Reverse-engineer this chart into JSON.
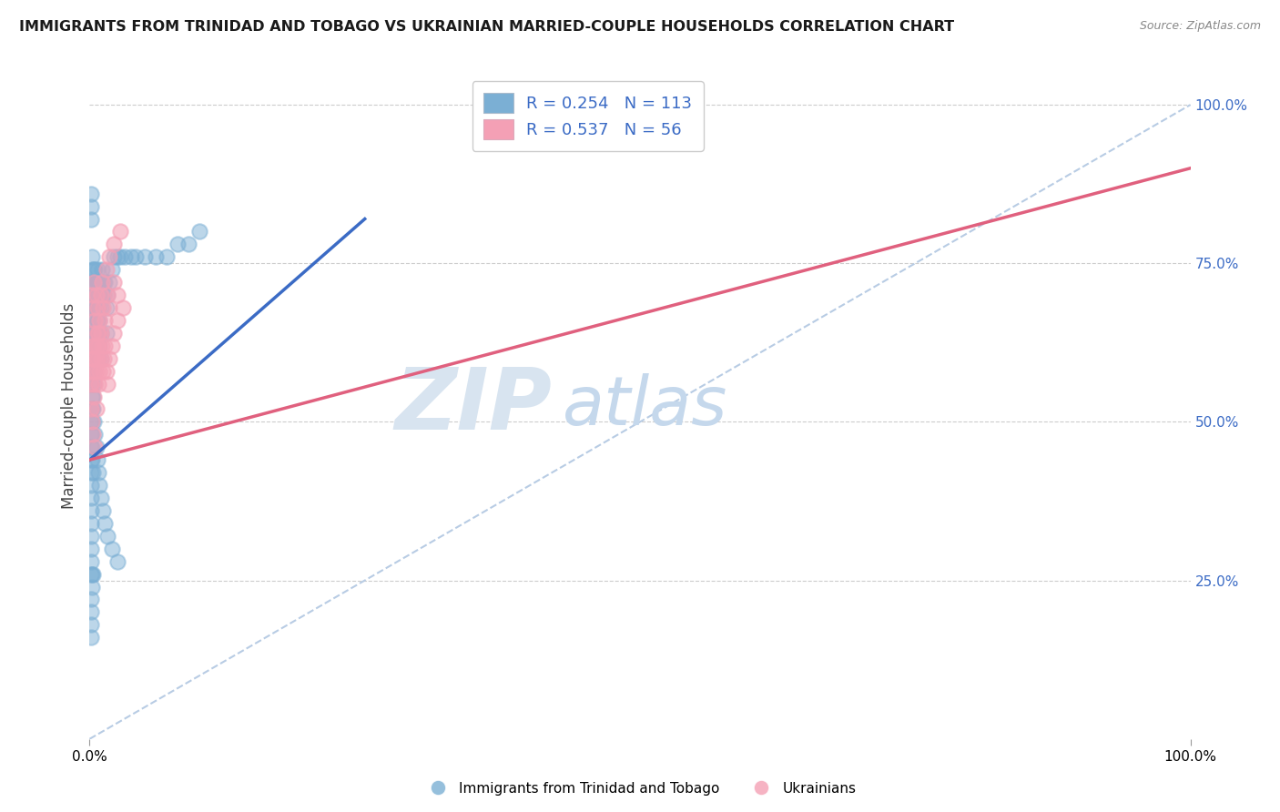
{
  "title": "IMMIGRANTS FROM TRINIDAD AND TOBAGO VS UKRAINIAN MARRIED-COUPLE HOUSEHOLDS CORRELATION CHART",
  "source": "Source: ZipAtlas.com",
  "ylabel": "Married-couple Households",
  "y_ticks_right": [
    "25.0%",
    "50.0%",
    "75.0%",
    "100.0%"
  ],
  "y_ticks_right_vals": [
    0.25,
    0.5,
    0.75,
    1.0
  ],
  "legend_blue_r": "R = 0.254",
  "legend_blue_n": "N = 113",
  "legend_pink_r": "R = 0.537",
  "legend_pink_n": "N = 56",
  "blue_color": "#7BAFD4",
  "pink_color": "#F4A0B5",
  "blue_line_color": "#3B6BC5",
  "pink_line_color": "#E0607E",
  "diag_line_color": "#B8CCE4",
  "watermark_zip": "ZIP",
  "watermark_atlas": "atlas",
  "watermark_color_zip": "#D8E4F0",
  "watermark_color_atlas": "#C5D8EC",
  "background_color": "#FFFFFF",
  "blue_scatter_x": [
    0.001,
    0.001,
    0.001,
    0.001,
    0.001,
    0.001,
    0.001,
    0.001,
    0.001,
    0.001,
    0.001,
    0.001,
    0.001,
    0.001,
    0.001,
    0.001,
    0.001,
    0.002,
    0.002,
    0.002,
    0.002,
    0.002,
    0.002,
    0.002,
    0.002,
    0.002,
    0.003,
    0.003,
    0.003,
    0.003,
    0.003,
    0.003,
    0.003,
    0.004,
    0.004,
    0.004,
    0.004,
    0.004,
    0.005,
    0.005,
    0.005,
    0.005,
    0.006,
    0.006,
    0.006,
    0.007,
    0.007,
    0.007,
    0.008,
    0.008,
    0.008,
    0.009,
    0.009,
    0.01,
    0.01,
    0.01,
    0.011,
    0.011,
    0.012,
    0.013,
    0.014,
    0.015,
    0.015,
    0.016,
    0.018,
    0.02,
    0.022,
    0.025,
    0.028,
    0.032,
    0.038,
    0.042,
    0.05,
    0.06,
    0.07,
    0.08,
    0.09,
    0.1,
    0.002,
    0.003,
    0.004,
    0.005,
    0.006,
    0.007,
    0.008,
    0.009,
    0.01,
    0.001,
    0.001,
    0.001,
    0.002,
    0.002,
    0.003,
    0.003,
    0.004,
    0.005,
    0.006,
    0.007,
    0.008,
    0.009,
    0.01,
    0.012,
    0.014,
    0.016,
    0.02,
    0.025,
    0.001,
    0.001,
    0.001,
    0.001,
    0.002,
    0.002,
    0.003
  ],
  "blue_scatter_y": [
    0.52,
    0.5,
    0.48,
    0.46,
    0.44,
    0.42,
    0.4,
    0.38,
    0.36,
    0.34,
    0.32,
    0.3,
    0.28,
    0.26,
    0.56,
    0.58,
    0.6,
    0.54,
    0.52,
    0.5,
    0.48,
    0.46,
    0.62,
    0.64,
    0.66,
    0.44,
    0.42,
    0.64,
    0.66,
    0.68,
    0.7,
    0.72,
    0.74,
    0.68,
    0.7,
    0.72,
    0.56,
    0.58,
    0.62,
    0.64,
    0.6,
    0.74,
    0.72,
    0.68,
    0.64,
    0.7,
    0.74,
    0.66,
    0.72,
    0.68,
    0.6,
    0.66,
    0.7,
    0.68,
    0.64,
    0.72,
    0.7,
    0.74,
    0.72,
    0.7,
    0.72,
    0.68,
    0.64,
    0.7,
    0.72,
    0.74,
    0.76,
    0.76,
    0.76,
    0.76,
    0.76,
    0.76,
    0.76,
    0.76,
    0.76,
    0.78,
    0.78,
    0.8,
    0.76,
    0.74,
    0.72,
    0.7,
    0.68,
    0.66,
    0.64,
    0.62,
    0.6,
    0.82,
    0.84,
    0.86,
    0.58,
    0.56,
    0.54,
    0.52,
    0.5,
    0.48,
    0.46,
    0.44,
    0.42,
    0.4,
    0.38,
    0.36,
    0.34,
    0.32,
    0.3,
    0.28,
    0.22,
    0.2,
    0.18,
    0.16,
    0.24,
    0.26,
    0.26
  ],
  "pink_scatter_x": [
    0.001,
    0.001,
    0.002,
    0.002,
    0.003,
    0.003,
    0.004,
    0.004,
    0.005,
    0.005,
    0.006,
    0.006,
    0.007,
    0.007,
    0.008,
    0.008,
    0.009,
    0.01,
    0.01,
    0.011,
    0.012,
    0.013,
    0.014,
    0.015,
    0.016,
    0.018,
    0.02,
    0.022,
    0.025,
    0.03,
    0.002,
    0.003,
    0.004,
    0.005,
    0.006,
    0.007,
    0.008,
    0.009,
    0.01,
    0.011,
    0.012,
    0.014,
    0.016,
    0.018,
    0.022,
    0.025,
    0.001,
    0.002,
    0.003,
    0.004,
    0.005,
    0.006,
    0.015,
    0.018,
    0.022,
    0.028
  ],
  "pink_scatter_y": [
    0.58,
    0.56,
    0.6,
    0.62,
    0.64,
    0.6,
    0.62,
    0.58,
    0.56,
    0.6,
    0.62,
    0.58,
    0.6,
    0.64,
    0.56,
    0.62,
    0.58,
    0.6,
    0.64,
    0.62,
    0.58,
    0.6,
    0.62,
    0.58,
    0.56,
    0.6,
    0.62,
    0.64,
    0.66,
    0.68,
    0.7,
    0.68,
    0.72,
    0.66,
    0.7,
    0.68,
    0.64,
    0.66,
    0.7,
    0.72,
    0.68,
    0.66,
    0.7,
    0.68,
    0.72,
    0.7,
    0.52,
    0.5,
    0.48,
    0.54,
    0.46,
    0.52,
    0.74,
    0.76,
    0.78,
    0.8
  ],
  "blue_line_x": [
    0.0,
    0.25
  ],
  "blue_line_y": [
    0.44,
    0.82
  ],
  "pink_line_x": [
    0.0,
    1.0
  ],
  "pink_line_y": [
    0.44,
    0.9
  ],
  "diag_line_x": [
    0.0,
    1.0
  ],
  "diag_line_y": [
    0.0,
    1.0
  ],
  "xlim": [
    0.0,
    1.0
  ],
  "ylim": [
    0.0,
    1.05
  ]
}
